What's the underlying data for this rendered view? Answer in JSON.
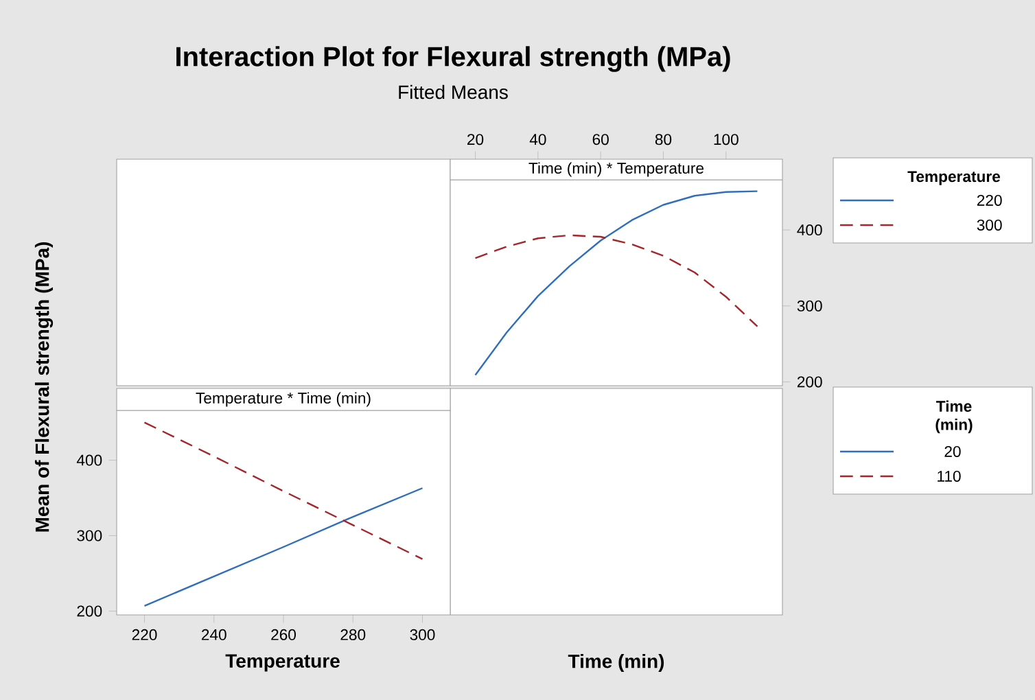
{
  "chart_data": [
    {
      "type": "other",
      "title": "Interaction Plot for Flexural strength (MPa)",
      "subtitle": "Fitted Means",
      "ylabel": "Mean of Flexural strength (MPa)"
    },
    {
      "type": "line",
      "annotations": [
        "Time (min) * Temperature"
      ],
      "xlabel": "Time (min)",
      "legend_title": "Temperature",
      "legend": "right",
      "x": [
        20,
        30,
        40,
        50,
        60,
        70,
        80,
        90,
        100,
        110
      ],
      "xlim": [
        12,
        118
      ],
      "ylim": [
        195,
        466
      ],
      "xticks": [
        20,
        40,
        60,
        80,
        100
      ],
      "yticks": [
        200,
        300,
        400
      ],
      "series": [
        {
          "name": "220",
          "color": "#2f6eba",
          "line_style": "solid",
          "values": [
            209,
            265,
            313,
            352,
            386,
            413,
            433,
            445,
            450,
            451
          ]
        },
        {
          "name": "300",
          "color": "#a5262a",
          "line_style": "dashed",
          "values": [
            363,
            378,
            389,
            393,
            391,
            381,
            366,
            344,
            312,
            273
          ]
        }
      ]
    },
    {
      "type": "line",
      "annotations": [
        "Temperature * Time (min)"
      ],
      "xlabel": "Temperature",
      "legend_title": "Time (min)",
      "legend": "right",
      "x": [
        220,
        240,
        260,
        280,
        300
      ],
      "xlim": [
        212,
        308
      ],
      "ylim": [
        195,
        466
      ],
      "xticks": [
        220,
        240,
        260,
        280,
        300
      ],
      "yticks": [
        200,
        300,
        400
      ],
      "series": [
        {
          "name": "20",
          "color": "#2f6eba",
          "line_style": "solid",
          "values": [
            207,
            246,
            285,
            325,
            363
          ]
        },
        {
          "name": "110",
          "color": "#a5262a",
          "line_style": "dashed",
          "values": [
            450,
            405,
            359,
            314,
            269
          ]
        }
      ]
    }
  ]
}
